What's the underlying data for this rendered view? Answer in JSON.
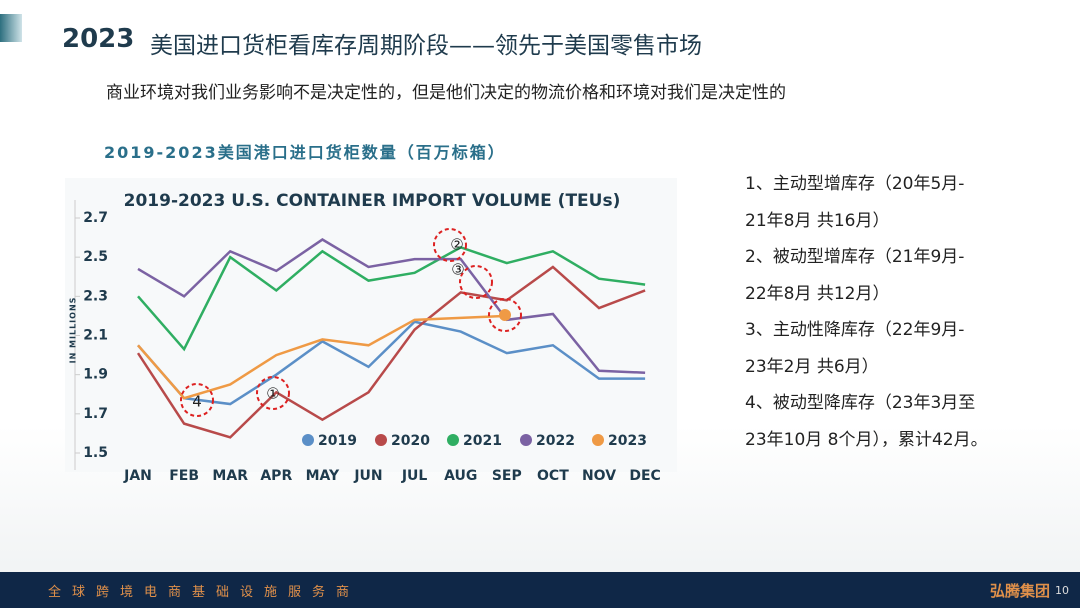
{
  "header": {
    "year": "2023",
    "title": "美国进口货柜看库存周期阶段——领先于美国零售市场",
    "subtitle": "商业环境对我们业务影响不是决定性的，但是他们决定的物流价格和环境对我们是决定性的"
  },
  "caption": "2019-2023美国港口进口货柜数量（百万标箱）",
  "chart_data": {
    "type": "line",
    "title": "2019-2023 U.S. CONTAINER IMPORT VOLUME (TEUs)",
    "y_label": "IN MILLIONS",
    "categories": [
      "JAN",
      "FEB",
      "MAR",
      "APR",
      "MAY",
      "JUN",
      "JUL",
      "AUG",
      "SEP",
      "OCT",
      "NOV",
      "DEC"
    ],
    "ylim": [
      1.5,
      2.7
    ],
    "yticks": [
      1.5,
      1.7,
      1.9,
      2.1,
      2.3,
      2.5,
      2.7
    ],
    "grid": false,
    "legend": "bottom-right",
    "series": [
      {
        "name": "2019",
        "color": "#5b8fc7",
        "values": [
          2.05,
          1.78,
          1.75,
          1.9,
          2.07,
          1.94,
          2.17,
          2.12,
          2.01,
          2.05,
          1.88,
          1.88
        ]
      },
      {
        "name": "2020",
        "color": "#b84a4a",
        "values": [
          2.01,
          1.65,
          1.58,
          1.81,
          1.67,
          1.81,
          2.13,
          2.32,
          2.28,
          2.45,
          2.24,
          2.33
        ]
      },
      {
        "name": "2021",
        "color": "#2fae62",
        "values": [
          2.3,
          2.03,
          2.5,
          2.33,
          2.53,
          2.38,
          2.42,
          2.55,
          2.47,
          2.53,
          2.39,
          2.36
        ]
      },
      {
        "name": "2022",
        "color": "#7b62a3",
        "values": [
          2.44,
          2.3,
          2.53,
          2.43,
          2.59,
          2.45,
          2.49,
          2.49,
          2.18,
          2.21,
          1.92,
          1.91
        ]
      },
      {
        "name": "2023",
        "color": "#ef9a45",
        "values": [
          2.05,
          1.78,
          1.85,
          2.0,
          2.08,
          2.05,
          2.18,
          2.19,
          2.2,
          null,
          null,
          null
        ]
      }
    ],
    "annotations": [
      "4",
      "①",
      "②",
      "③"
    ]
  },
  "notes": [
    [
      "1、主动型增库存（20年5月-",
      "21年8月 共16月）"
    ],
    [
      "2、被动型增库存（21年9月-",
      "22年8月 共12月）"
    ],
    [
      "3、主动性降库存（22年9月-",
      "23年2月 共6月）"
    ],
    [
      "4、被动型降库存（23年3月至",
      "23年10月 8个月），累计42月。"
    ]
  ],
  "footer": {
    "slogan": "全球跨境电商基础设施服务商",
    "brand": "弘腾集团",
    "page": "10"
  }
}
